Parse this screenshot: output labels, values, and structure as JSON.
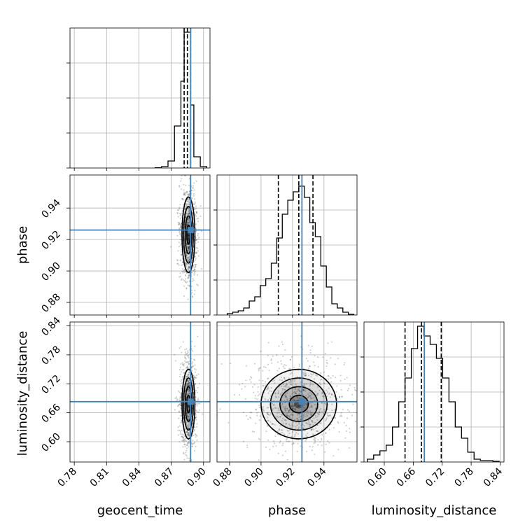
{
  "chart_data": {
    "type": "corner",
    "parameters": [
      "geocent_time",
      "phase",
      "luminosity_distance"
    ],
    "truth_color": "#4682b4",
    "truths": {
      "geocent_time": 0.888,
      "phase": 0.926,
      "luminosity_distance": 0.683
    },
    "ranges": {
      "geocent_time": [
        0.776,
        0.906
      ],
      "phase": [
        0.872,
        0.961
      ],
      "luminosity_distance": [
        0.558,
        0.848
      ]
    },
    "ticks": {
      "geocent_time": {
        "values": [
          0.78,
          0.81,
          0.84,
          0.87,
          0.9
        ],
        "labels": [
          "0.78",
          "0.81",
          "0.84",
          "0.87",
          "0.90"
        ]
      },
      "phase": {
        "values": [
          0.88,
          0.9,
          0.92,
          0.94
        ],
        "labels": [
          "0.88",
          "0.90",
          "0.92",
          "0.94"
        ]
      },
      "luminosity_distance": {
        "values": [
          0.6,
          0.66,
          0.72,
          0.78,
          0.84
        ],
        "labels": [
          "0.60",
          "0.66",
          "0.72",
          "0.78",
          "0.84"
        ]
      }
    },
    "quantiles": {
      "geocent_time": [
        0.882,
        0.885,
        0.888
      ],
      "phase": [
        0.911,
        0.924,
        0.933
      ],
      "luminosity_distance": [
        0.643,
        0.677,
        0.718
      ]
    },
    "medians": {
      "geocent_time": 0.886,
      "phase": 0.924,
      "luminosity_distance": 0.678
    },
    "histograms": {
      "geocent_time": {
        "edges": [
          0.855,
          0.861,
          0.867,
          0.873,
          0.879,
          0.882,
          0.885,
          0.888,
          0.891,
          0.897,
          0.903
        ],
        "counts": [
          0.002,
          0.01,
          0.05,
          0.3,
          0.62,
          0.97,
          0.97,
          0.45,
          0.08,
          0.01
        ]
      },
      "phase": {
        "edges": [
          0.8785,
          0.882,
          0.8855,
          0.889,
          0.8925,
          0.896,
          0.8995,
          0.903,
          0.9065,
          0.91,
          0.9135,
          0.917,
          0.9205,
          0.924,
          0.9275,
          0.931,
          0.9345,
          0.938,
          0.9415,
          0.945,
          0.9485,
          0.952,
          0.9555,
          0.959
        ],
        "counts": [
          0.01,
          0.02,
          0.03,
          0.05,
          0.1,
          0.13,
          0.21,
          0.26,
          0.37,
          0.55,
          0.72,
          0.82,
          0.88,
          0.92,
          0.84,
          0.66,
          0.56,
          0.35,
          0.2,
          0.08,
          0.05,
          0.02,
          0.005
        ]
      },
      "luminosity_distance": {
        "edges": [
          0.565,
          0.578,
          0.591,
          0.604,
          0.617,
          0.63,
          0.643,
          0.656,
          0.669,
          0.682,
          0.695,
          0.708,
          0.721,
          0.734,
          0.747,
          0.76,
          0.773,
          0.786,
          0.799,
          0.812,
          0.825,
          0.838
        ],
        "counts": [
          0.02,
          0.05,
          0.08,
          0.12,
          0.25,
          0.43,
          0.6,
          0.81,
          0.97,
          0.9,
          0.84,
          0.74,
          0.6,
          0.43,
          0.25,
          0.17,
          0.07,
          0.02,
          0.01,
          0.01,
          0.005
        ]
      }
    },
    "posterior_2d": [
      {
        "x": "geocent_time",
        "y": "phase",
        "center": [
          0.886,
          0.923
        ],
        "sigma": [
          0.003,
          0.012
        ],
        "extent": [
          0.865,
          0.875,
          0.899,
          0.958
        ]
      },
      {
        "x": "geocent_time",
        "y": "luminosity_distance",
        "center": [
          0.886,
          0.678
        ],
        "sigma": [
          0.003,
          0.036
        ],
        "extent": [
          0.86,
          0.58,
          0.899,
          0.79
        ]
      },
      {
        "x": "phase",
        "y": "luminosity_distance",
        "center": [
          0.924,
          0.678
        ],
        "sigma": [
          0.012,
          0.036
        ],
        "extent": [
          0.885,
          0.58,
          0.96,
          0.79
        ]
      }
    ],
    "contour_levels": [
      0.5,
      1.0,
      1.5,
      2.0
    ],
    "grid": true
  }
}
